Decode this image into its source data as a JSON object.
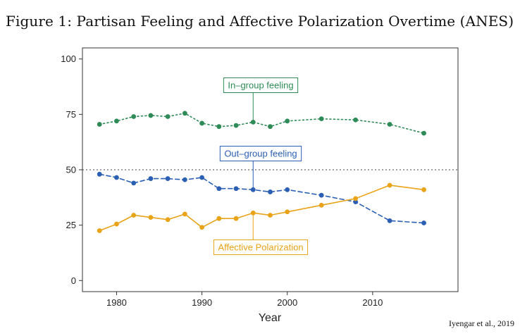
{
  "title": "Figure 1: Partisan Feeling and Affective Polarization Overtime (ANES)",
  "credit": "Iyengar et al., 2019",
  "chart_data": {
    "type": "line",
    "xlabel": "Year",
    "ylabel": "",
    "xlim": [
      1976,
      2020
    ],
    "ylim": [
      -5,
      105
    ],
    "xticks": [
      1980,
      1990,
      2000,
      2010
    ],
    "yticks": [
      0,
      25,
      50,
      75,
      100
    ],
    "reference_line": {
      "y": 50,
      "style": "dotted"
    },
    "grid": false,
    "legend": "none",
    "series": [
      {
        "name": "In–group feeling",
        "color": "#2e8b57",
        "line_style": "dotted",
        "annotation_anchor": {
          "x": 1996,
          "y": 71.5
        },
        "points": [
          {
            "x": 1978,
            "y": 70.5
          },
          {
            "x": 1980,
            "y": 72
          },
          {
            "x": 1982,
            "y": 74
          },
          {
            "x": 1984,
            "y": 74.5
          },
          {
            "x": 1986,
            "y": 74
          },
          {
            "x": 1988,
            "y": 75.5
          },
          {
            "x": 1990,
            "y": 71
          },
          {
            "x": 1992,
            "y": 69.5
          },
          {
            "x": 1994,
            "y": 70
          },
          {
            "x": 1996,
            "y": 71.5
          },
          {
            "x": 1998,
            "y": 69.5
          },
          {
            "x": 2000,
            "y": 72
          },
          {
            "x": 2004,
            "y": 73
          },
          {
            "x": 2008,
            "y": 72.5
          },
          {
            "x": 2012,
            "y": 70.5
          },
          {
            "x": 2016,
            "y": 66.5
          }
        ]
      },
      {
        "name": "Out–group feeling",
        "color": "#2b5fb4",
        "line_style": "dashed",
        "annotation_anchor": {
          "x": 1996,
          "y": 41
        },
        "points": [
          {
            "x": 1978,
            "y": 48
          },
          {
            "x": 1980,
            "y": 46.5
          },
          {
            "x": 1982,
            "y": 44
          },
          {
            "x": 1984,
            "y": 46
          },
          {
            "x": 1986,
            "y": 46
          },
          {
            "x": 1988,
            "y": 45.5
          },
          {
            "x": 1990,
            "y": 46.5
          },
          {
            "x": 1992,
            "y": 41.5
          },
          {
            "x": 1994,
            "y": 41.5
          },
          {
            "x": 1996,
            "y": 41
          },
          {
            "x": 1998,
            "y": 40
          },
          {
            "x": 2000,
            "y": 41
          },
          {
            "x": 2004,
            "y": 38.5
          },
          {
            "x": 2008,
            "y": 35.5
          },
          {
            "x": 2012,
            "y": 27
          },
          {
            "x": 2016,
            "y": 26
          }
        ]
      },
      {
        "name": "Affective Polarization",
        "color": "#e8a317",
        "line_style": "solid",
        "annotation_anchor": {
          "x": 1996,
          "y": 30.5
        },
        "points": [
          {
            "x": 1978,
            "y": 22.5
          },
          {
            "x": 1980,
            "y": 25.5
          },
          {
            "x": 1982,
            "y": 29.5
          },
          {
            "x": 1984,
            "y": 28.5
          },
          {
            "x": 1986,
            "y": 27.5
          },
          {
            "x": 1988,
            "y": 30
          },
          {
            "x": 1990,
            "y": 24
          },
          {
            "x": 1992,
            "y": 28
          },
          {
            "x": 1994,
            "y": 28
          },
          {
            "x": 1996,
            "y": 30.5
          },
          {
            "x": 1998,
            "y": 29.5
          },
          {
            "x": 2000,
            "y": 31
          },
          {
            "x": 2004,
            "y": 34
          },
          {
            "x": 2008,
            "y": 37
          },
          {
            "x": 2012,
            "y": 43
          },
          {
            "x": 2016,
            "y": 41
          }
        ]
      }
    ]
  }
}
